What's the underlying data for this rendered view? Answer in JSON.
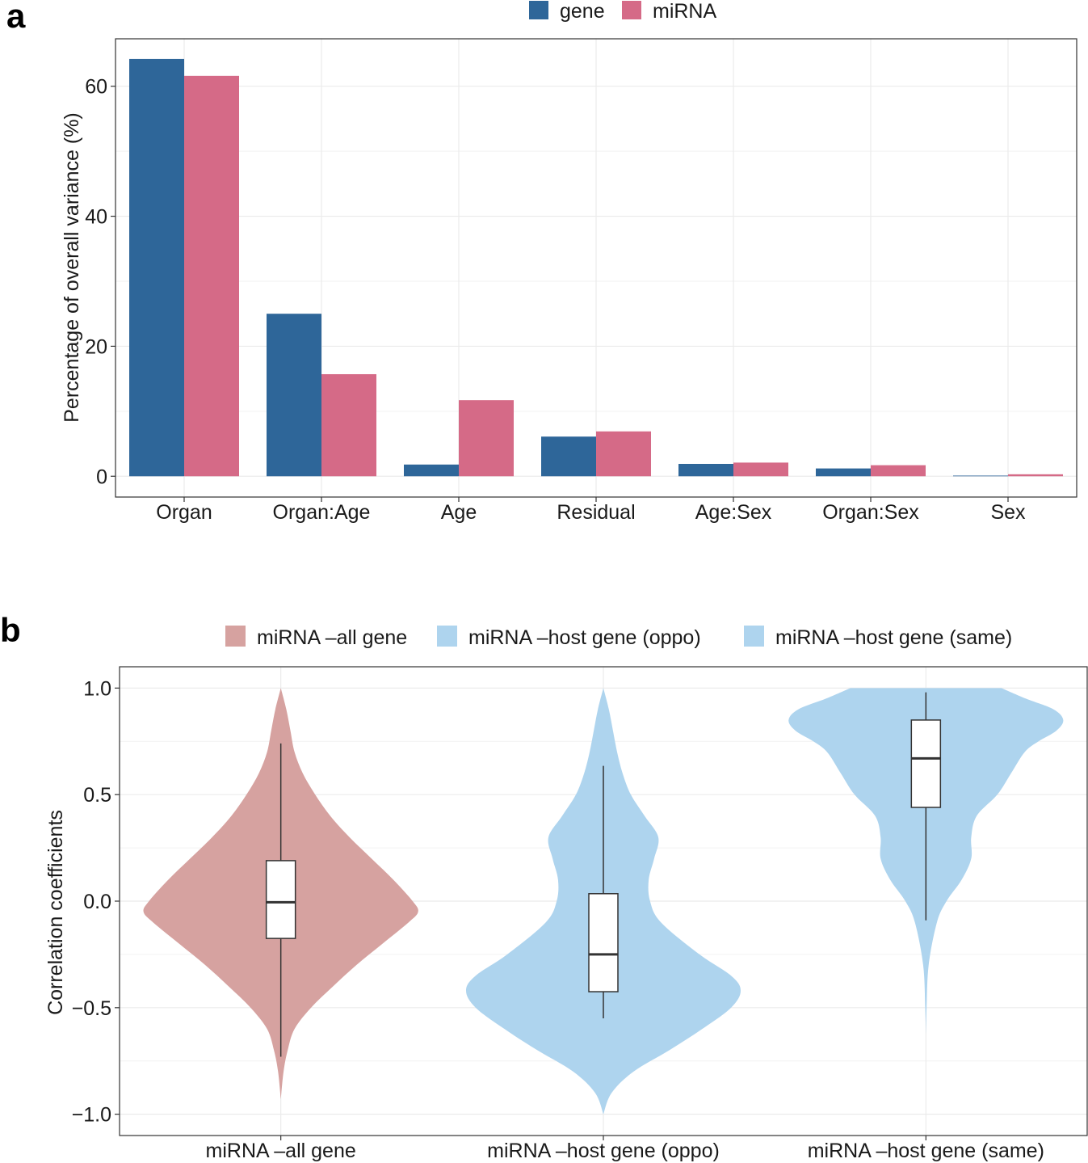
{
  "chart_data": [
    {
      "panel": "a",
      "type": "bar",
      "title": "",
      "xlabel": "",
      "ylabel": "Percentage of overall variance (%)",
      "ylim": [
        -3.2,
        67.3
      ],
      "yticks": [
        0,
        20,
        40,
        60
      ],
      "ytick_labels": [
        "0",
        "20",
        "40",
        "60"
      ],
      "grid": true,
      "legend_position": "top",
      "categories": [
        "Organ",
        "Organ:Age",
        "Age",
        "Residual",
        "Age:Sex",
        "Organ:Sex",
        "Sex"
      ],
      "series": [
        {
          "name": "gene",
          "color": "#2E6699",
          "values": [
            64.2,
            25.0,
            1.8,
            6.1,
            1.9,
            1.2,
            0.1
          ]
        },
        {
          "name": "miRNA",
          "color": "#D56A87",
          "values": [
            61.6,
            15.7,
            11.7,
            6.9,
            2.1,
            1.7,
            0.3
          ]
        }
      ]
    },
    {
      "panel": "b",
      "type": "violin",
      "title": "",
      "xlabel": "",
      "ylabel": "Correlation coefficients",
      "ylim": [
        -1.1,
        1.1
      ],
      "yticks": [
        -1.0,
        -0.5,
        0.0,
        0.5,
        1.0
      ],
      "ytick_labels": [
        "−1.0",
        "−0.5",
        "0.0",
        "0.5",
        "1.0"
      ],
      "grid": true,
      "legend_position": "top",
      "categories": [
        "miRNA –all gene",
        "miRNA –host gene (oppo)",
        "miRNA –host gene (same)"
      ],
      "groups": [
        {
          "name": "miRNA –all gene",
          "color": "#D6A2A0",
          "box": {
            "whisker_low": -0.73,
            "q1": -0.175,
            "median": -0.005,
            "q3": 0.19,
            "whisker_high": 0.74
          },
          "density_y": [
            -0.93,
            -0.8,
            -0.7,
            -0.6,
            -0.5,
            -0.4,
            -0.3,
            -0.2,
            -0.1,
            -0.05,
            0.0,
            0.1,
            0.2,
            0.3,
            0.4,
            0.5,
            0.6,
            0.7,
            0.8,
            0.9,
            1.0
          ],
          "density_w": [
            0.0,
            0.02,
            0.05,
            0.1,
            0.22,
            0.38,
            0.55,
            0.74,
            0.93,
            1.0,
            0.96,
            0.82,
            0.66,
            0.5,
            0.36,
            0.25,
            0.16,
            0.1,
            0.07,
            0.04,
            0.0
          ]
        },
        {
          "name": "miRNA –host gene (oppo)",
          "color": "#AED4EE",
          "box": {
            "whisker_low": -0.55,
            "q1": -0.425,
            "median": -0.25,
            "q3": 0.035,
            "whisker_high": 0.635
          },
          "density_y": [
            -1.0,
            -0.9,
            -0.8,
            -0.7,
            -0.6,
            -0.5,
            -0.42,
            -0.35,
            -0.25,
            -0.1,
            0.0,
            0.1,
            0.2,
            0.3,
            0.4,
            0.5,
            0.6,
            0.7,
            0.8,
            0.9,
            1.0
          ],
          "density_w": [
            0.0,
            0.06,
            0.22,
            0.48,
            0.72,
            0.93,
            1.0,
            0.93,
            0.7,
            0.42,
            0.34,
            0.33,
            0.37,
            0.4,
            0.3,
            0.2,
            0.14,
            0.1,
            0.07,
            0.04,
            0.0
          ]
        },
        {
          "name": "miRNA –host gene (same)",
          "color": "#AED4EE",
          "box": {
            "whisker_low": -0.09,
            "q1": 0.44,
            "median": 0.67,
            "q3": 0.85,
            "whisker_high": 0.98
          },
          "density_y": [
            -0.62,
            -0.5,
            -0.3,
            -0.1,
            0.0,
            0.1,
            0.2,
            0.3,
            0.4,
            0.5,
            0.6,
            0.7,
            0.75,
            0.8,
            0.85,
            0.9,
            0.95,
            1.0
          ],
          "density_w": [
            0.0,
            0.005,
            0.02,
            0.08,
            0.15,
            0.26,
            0.33,
            0.33,
            0.37,
            0.52,
            0.62,
            0.72,
            0.82,
            0.95,
            1.0,
            0.93,
            0.73,
            0.55
          ]
        }
      ]
    }
  ],
  "figure": {
    "panel_a_letter": "a",
    "panel_b_letter": "b"
  }
}
